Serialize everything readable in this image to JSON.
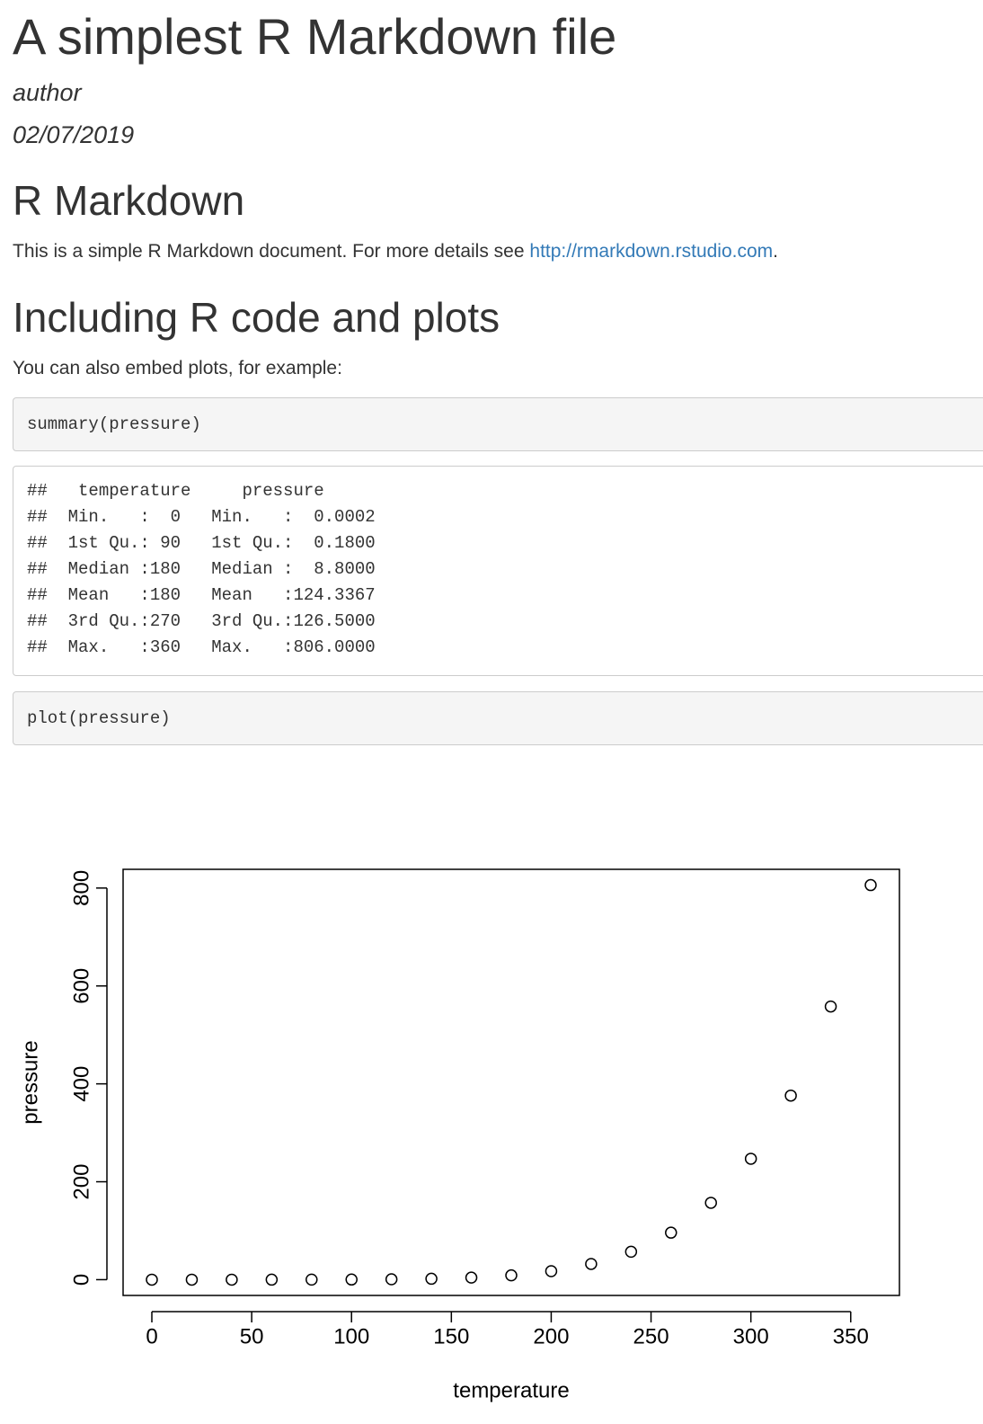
{
  "header": {
    "title": "A simplest R Markdown file",
    "author": "author",
    "date": "02/07/2019"
  },
  "sections": [
    {
      "heading": "R Markdown",
      "text": "This is a simple R Markdown document. For more details see ",
      "link": "http://rmarkdown.rstudio.com",
      "text_end": "."
    },
    {
      "heading": "Including R code and plots",
      "text": "You can also embed plots, for example:"
    }
  ],
  "code_blocks": [
    "summary(pressure)",
    "plot(pressure)"
  ],
  "output_lines": [
    "##   temperature     pressure",
    "##  Min.   :  0   Min.   :  0.0002",
    "##  1st Qu.: 90   1st Qu.:  0.1800",
    "##  Median :180   Median :  8.8000",
    "##  Mean   :180   Mean   :124.3367",
    "##  3rd Qu.:270   3rd Qu.:126.5000",
    "##  Max.   :360   Max.   :806.0000"
  ],
  "chart_data": {
    "type": "scatter",
    "x_label": "temperature",
    "y_label": "pressure",
    "x": [
      0,
      20,
      40,
      60,
      80,
      100,
      120,
      140,
      160,
      180,
      200,
      220,
      240,
      260,
      280,
      300,
      320,
      340,
      360
    ],
    "values": [
      0.0002,
      0.0012,
      0.006,
      0.03,
      0.09,
      0.27,
      0.75,
      1.85,
      4.2,
      8.8,
      17.3,
      32.1,
      57,
      96,
      157,
      247,
      376,
      558,
      806
    ],
    "color": "#000000",
    "xlim": [
      -14.4,
      374.4
    ],
    "xticks": [
      0,
      50,
      100,
      150,
      200,
      250,
      300,
      350
    ],
    "ylim": [
      -32.24,
      838.24
    ],
    "yticks": [
      0,
      200,
      400,
      600,
      800
    ]
  }
}
